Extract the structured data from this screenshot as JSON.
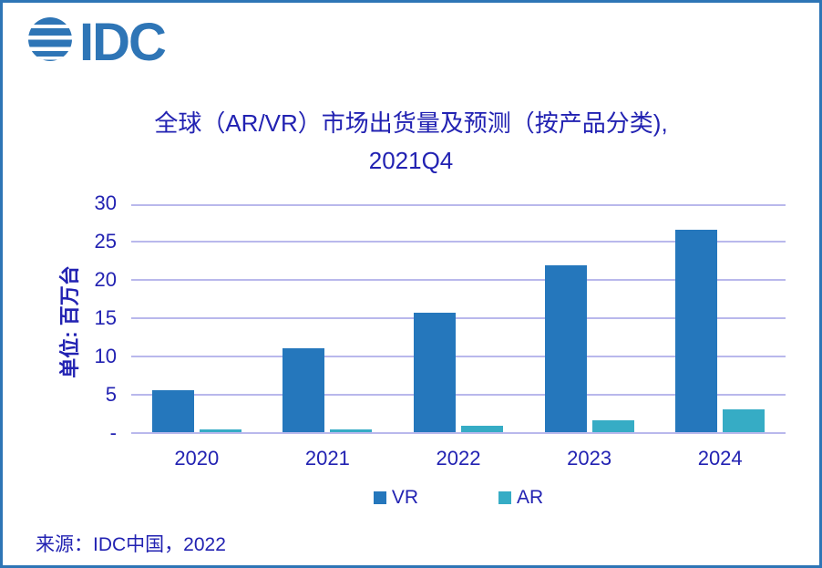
{
  "header": {
    "logo_text": "IDC",
    "title_line1": "全球（AR/VR）市场出货量及预测（按产品分类),",
    "title_line2": "2021Q4"
  },
  "footer": {
    "source": "来源：IDC中国，2022"
  },
  "colors": {
    "frame": "#2E75B6",
    "logo": "#2E75B6",
    "text": "#2222B2",
    "gridline": "#B9B8EC",
    "vr_bar": "#2577BC",
    "ar_bar": "#36ACC5"
  },
  "chart_data": {
    "type": "bar",
    "categories": [
      "2020",
      "2021",
      "2022",
      "2023",
      "2024"
    ],
    "series": [
      {
        "name": "VR",
        "color": "#2577BC",
        "values": [
          5.5,
          10.9,
          15.6,
          21.8,
          26.4
        ]
      },
      {
        "name": "AR",
        "color": "#36ACC5",
        "values": [
          0.3,
          0.3,
          0.8,
          1.6,
          3.0
        ]
      }
    ],
    "title": "全球（AR/VR）市场出货量及预测（按产品分类), 2021Q4",
    "xlabel": "",
    "ylabel": "单位: 百万台",
    "ylim": [
      0,
      30
    ],
    "ytick_step": 5,
    "ytick_labels": [
      "-",
      "5",
      "10",
      "15",
      "20",
      "25",
      "30"
    ],
    "grid": true,
    "legend": [
      "VR",
      "AR"
    ],
    "legend_position": "bottom-center"
  }
}
